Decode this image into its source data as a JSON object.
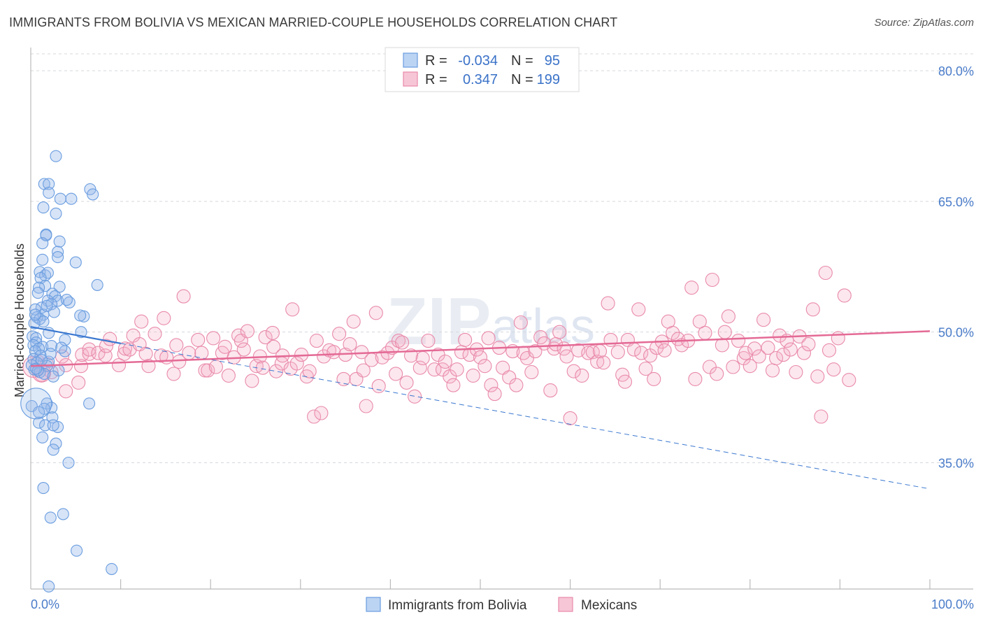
{
  "title": "IMMIGRANTS FROM BOLIVIA VS MEXICAN MARRIED-COUPLE HOUSEHOLDS CORRELATION CHART",
  "source": "Source: ZipAtlas.com",
  "watermark": {
    "zip": "ZIP",
    "atlas": "atlas"
  },
  "colors": {
    "blue": "#6a9de0",
    "blue_line": "#3b78d0",
    "pink": "#e98aaa",
    "pink_line": "#e46a95"
  },
  "chart_data": {
    "type": "scatter",
    "title": "IMMIGRANTS FROM BOLIVIA VS MEXICAN MARRIED-COUPLE HOUSEHOLDS CORRELATION CHART",
    "xlabel": "",
    "ylabel": "Married-couple Households",
    "xlim": [
      0,
      100
    ],
    "ylim": [
      20.5,
      82.5
    ],
    "x_tick_labels": [
      "0.0%",
      "100.0%"
    ],
    "y_ticks": [
      35,
      50,
      65,
      80
    ],
    "y_tick_labels": [
      "35.0%",
      "50.0%",
      "65.0%",
      "80.0%"
    ],
    "grid": true,
    "legend": {
      "placement": "top-center",
      "entries": [
        {
          "r_label": "R =",
          "r": "-0.034",
          "n_label": "N =",
          "n": "95"
        },
        {
          "r_label": "R =",
          "r": "0.347",
          "n_label": "N =",
          "n": "199"
        }
      ]
    },
    "series": [
      {
        "name": "Immigrants from Bolivia",
        "trend": {
          "solid": [
            [
              0,
              50.6
            ],
            [
              10,
              48.7
            ]
          ],
          "dashed": [
            [
              10,
              48.7
            ],
            [
              100,
              32.0
            ]
          ]
        },
        "points": [
          [
            2.8,
            70.2
          ],
          [
            1.5,
            67.0
          ],
          [
            2.0,
            67.0
          ],
          [
            6.6,
            66.4
          ],
          [
            6.9,
            65.8
          ],
          [
            4.5,
            65.3
          ],
          [
            3.3,
            65.3
          ],
          [
            2.0,
            66.0
          ],
          [
            1.4,
            64.3
          ],
          [
            2.8,
            63.6
          ],
          [
            1.7,
            61.2
          ],
          [
            1.7,
            61.1
          ],
          [
            1.3,
            60.2
          ],
          [
            3.2,
            60.4
          ],
          [
            3.0,
            59.2
          ],
          [
            3.0,
            58.6
          ],
          [
            1.3,
            58.3
          ],
          [
            5.0,
            58.0
          ],
          [
            1.0,
            56.9
          ],
          [
            1.6,
            56.5
          ],
          [
            1.9,
            56.8
          ],
          [
            1.1,
            56.2
          ],
          [
            1.6,
            55.3
          ],
          [
            0.9,
            55.1
          ],
          [
            3.2,
            55.2
          ],
          [
            7.4,
            55.4
          ],
          [
            0.8,
            54.5
          ],
          [
            2.4,
            54.4
          ],
          [
            2.7,
            54.1
          ],
          [
            3.0,
            53.6
          ],
          [
            1.9,
            53.6
          ],
          [
            2.3,
            53.2
          ],
          [
            4.3,
            53.4
          ],
          [
            1.2,
            52.8
          ],
          [
            0.5,
            52.6
          ],
          [
            2.6,
            52.3
          ],
          [
            1.4,
            52.0
          ],
          [
            0.7,
            51.7
          ],
          [
            5.9,
            51.8
          ],
          [
            5.5,
            51.9
          ],
          [
            1.0,
            51.5
          ],
          [
            1.4,
            51.2
          ],
          [
            0.4,
            51.0
          ],
          [
            2.0,
            49.9
          ],
          [
            0.2,
            49.5
          ],
          [
            0.6,
            49.3
          ],
          [
            3.8,
            49.1
          ],
          [
            5.6,
            50.0
          ],
          [
            0.6,
            48.8
          ],
          [
            0.3,
            48.5
          ],
          [
            1.3,
            48.3
          ],
          [
            2.3,
            48.4
          ],
          [
            0.9,
            48.1
          ],
          [
            0.5,
            47.8
          ],
          [
            3.8,
            47.8
          ],
          [
            1.1,
            47.3
          ],
          [
            0.3,
            46.9
          ],
          [
            0.7,
            46.5
          ],
          [
            2.0,
            46.6
          ],
          [
            0.1,
            46.2
          ],
          [
            1.8,
            46.1
          ],
          [
            0.4,
            45.7
          ],
          [
            1.0,
            45.4
          ],
          [
            3.1,
            45.6
          ],
          [
            1.5,
            45.2
          ],
          [
            0.8,
            45.6
          ],
          [
            2.5,
            44.9
          ],
          [
            0.1,
            41.5
          ],
          [
            1.8,
            41.8
          ],
          [
            2.3,
            41.3
          ],
          [
            6.5,
            41.8
          ],
          [
            1.5,
            41.2
          ],
          [
            0.9,
            40.8
          ],
          [
            2.4,
            40.2
          ],
          [
            0.9,
            39.6
          ],
          [
            1.6,
            39.3
          ],
          [
            3.0,
            39.1
          ],
          [
            2.5,
            39.3
          ],
          [
            1.3,
            37.9
          ],
          [
            2.8,
            37.2
          ],
          [
            2.5,
            36.5
          ],
          [
            4.2,
            35.0
          ],
          [
            1.4,
            32.1
          ],
          [
            3.6,
            29.1
          ],
          [
            2.2,
            28.7
          ],
          [
            5.1,
            24.9
          ],
          [
            9.0,
            22.8
          ],
          [
            2.0,
            20.8
          ],
          [
            0.6,
            45.8
          ],
          [
            1.2,
            46.8
          ],
          [
            2.2,
            47.5
          ],
          [
            0.5,
            52.0
          ],
          [
            4.0,
            53.7
          ],
          [
            3.4,
            48.2
          ],
          [
            1.8,
            53.0
          ]
        ]
      },
      {
        "name": "Mexicans",
        "trend": {
          "solid": [
            [
              0,
              46.1
            ],
            [
              100,
              50.1
            ]
          ]
        },
        "points": [
          [
            0.8,
            46.6
          ],
          [
            1.2,
            45.1
          ],
          [
            1.8,
            46.3
          ],
          [
            2.3,
            45.4
          ],
          [
            3.5,
            47.2
          ],
          [
            3.9,
            46.2
          ],
          [
            3.9,
            43.2
          ],
          [
            5.3,
            44.2
          ],
          [
            5.6,
            46.1
          ],
          [
            5.7,
            47.4
          ],
          [
            6.5,
            47.5
          ],
          [
            6.5,
            48.0
          ],
          [
            7.5,
            47.6
          ],
          [
            8.3,
            47.3
          ],
          [
            8.4,
            48.4
          ],
          [
            8.8,
            49.2
          ],
          [
            9.8,
            46.2
          ],
          [
            10.4,
            47.5
          ],
          [
            10.5,
            48.1
          ],
          [
            11.0,
            48.0
          ],
          [
            11.4,
            49.6
          ],
          [
            12.1,
            48.6
          ],
          [
            12.3,
            51.2
          ],
          [
            12.8,
            47.5
          ],
          [
            13.1,
            46.1
          ],
          [
            13.8,
            49.8
          ],
          [
            14.5,
            47.3
          ],
          [
            14.8,
            51.6
          ],
          [
            15.1,
            47.1
          ],
          [
            15.9,
            45.2
          ],
          [
            16.2,
            48.5
          ],
          [
            16.5,
            46.6
          ],
          [
            17.0,
            54.1
          ],
          [
            17.6,
            47.6
          ],
          [
            18.6,
            49.1
          ],
          [
            19.0,
            47.6
          ],
          [
            19.4,
            45.6
          ],
          [
            19.7,
            45.6
          ],
          [
            20.3,
            49.3
          ],
          [
            20.6,
            46.0
          ],
          [
            21.3,
            47.6
          ],
          [
            21.6,
            48.3
          ],
          [
            22.0,
            45.0
          ],
          [
            22.6,
            47.1
          ],
          [
            23.1,
            49.6
          ],
          [
            23.4,
            49.0
          ],
          [
            23.7,
            48.0
          ],
          [
            24.1,
            50.1
          ],
          [
            24.6,
            44.4
          ],
          [
            25.1,
            46.1
          ],
          [
            25.5,
            47.2
          ],
          [
            25.8,
            45.9
          ],
          [
            26.1,
            49.4
          ],
          [
            26.9,
            49.9
          ],
          [
            27.0,
            48.3
          ],
          [
            27.3,
            45.5
          ],
          [
            27.9,
            46.4
          ],
          [
            28.0,
            47.3
          ],
          [
            28.9,
            45.8
          ],
          [
            29.1,
            52.6
          ],
          [
            29.6,
            46.4
          ],
          [
            30.1,
            47.4
          ],
          [
            30.7,
            44.9
          ],
          [
            31.0,
            45.5
          ],
          [
            31.5,
            40.3
          ],
          [
            31.8,
            49.0
          ],
          [
            32.3,
            40.7
          ],
          [
            32.6,
            47.2
          ],
          [
            33.2,
            47.9
          ],
          [
            33.7,
            47.7
          ],
          [
            34.3,
            49.8
          ],
          [
            34.8,
            44.6
          ],
          [
            35.0,
            47.4
          ],
          [
            35.5,
            48.6
          ],
          [
            35.9,
            51.2
          ],
          [
            36.2,
            44.6
          ],
          [
            36.8,
            47.7
          ],
          [
            37.0,
            45.6
          ],
          [
            37.3,
            41.5
          ],
          [
            37.9,
            46.8
          ],
          [
            38.4,
            52.2
          ],
          [
            38.7,
            43.8
          ],
          [
            39.1,
            47.1
          ],
          [
            39.7,
            47.6
          ],
          [
            40.2,
            48.2
          ],
          [
            40.6,
            45.2
          ],
          [
            40.9,
            49.0
          ],
          [
            41.3,
            48.8
          ],
          [
            41.8,
            44.2
          ],
          [
            42.3,
            47.3
          ],
          [
            42.7,
            42.6
          ],
          [
            43.3,
            45.9
          ],
          [
            43.6,
            47.0
          ],
          [
            44.2,
            49.0
          ],
          [
            44.9,
            45.7
          ],
          [
            45.3,
            47.4
          ],
          [
            45.8,
            45.7
          ],
          [
            46.1,
            46.6
          ],
          [
            46.6,
            44.9
          ],
          [
            47.0,
            43.9
          ],
          [
            47.4,
            45.7
          ],
          [
            47.9,
            47.7
          ],
          [
            48.3,
            49.1
          ],
          [
            48.8,
            47.4
          ],
          [
            49.2,
            45.0
          ],
          [
            49.6,
            48.0
          ],
          [
            50.0,
            47.1
          ],
          [
            50.5,
            46.1
          ],
          [
            50.9,
            49.3
          ],
          [
            51.2,
            43.9
          ],
          [
            51.6,
            42.9
          ],
          [
            52.1,
            48.2
          ],
          [
            52.5,
            45.9
          ],
          [
            53.2,
            44.8
          ],
          [
            53.6,
            47.8
          ],
          [
            54.0,
            43.9
          ],
          [
            54.5,
            51.1
          ],
          [
            54.8,
            47.6
          ],
          [
            55.2,
            47.0
          ],
          [
            55.7,
            45.4
          ],
          [
            56.1,
            47.8
          ],
          [
            56.7,
            49.4
          ],
          [
            57.1,
            48.7
          ],
          [
            57.8,
            43.3
          ],
          [
            58.2,
            48.1
          ],
          [
            58.4,
            48.6
          ],
          [
            58.8,
            50.0
          ],
          [
            59.3,
            48.1
          ],
          [
            59.6,
            47.2
          ],
          [
            60.0,
            40.1
          ],
          [
            60.4,
            45.5
          ],
          [
            60.9,
            47.9
          ],
          [
            61.3,
            45.0
          ],
          [
            62.0,
            47.6
          ],
          [
            62.5,
            47.7
          ],
          [
            63.0,
            46.6
          ],
          [
            63.3,
            47.8
          ],
          [
            63.7,
            46.5
          ],
          [
            64.2,
            53.3
          ],
          [
            64.5,
            49.1
          ],
          [
            65.3,
            47.7
          ],
          [
            65.8,
            45.1
          ],
          [
            66.1,
            44.3
          ],
          [
            66.4,
            49.1
          ],
          [
            67.1,
            48.0
          ],
          [
            67.6,
            52.6
          ],
          [
            67.9,
            47.6
          ],
          [
            68.4,
            45.8
          ],
          [
            68.9,
            47.3
          ],
          [
            69.3,
            44.6
          ],
          [
            69.6,
            48.2
          ],
          [
            70.2,
            48.9
          ],
          [
            70.5,
            47.9
          ],
          [
            70.9,
            51.2
          ],
          [
            71.4,
            49.9
          ],
          [
            72.0,
            49.2
          ],
          [
            72.4,
            48.5
          ],
          [
            73.1,
            49.0
          ],
          [
            73.5,
            55.1
          ],
          [
            73.9,
            44.6
          ],
          [
            74.4,
            51.2
          ],
          [
            75.0,
            49.9
          ],
          [
            75.5,
            46.0
          ],
          [
            75.8,
            56.0
          ],
          [
            76.3,
            45.2
          ],
          [
            76.9,
            48.5
          ],
          [
            77.2,
            50.0
          ],
          [
            77.6,
            51.8
          ],
          [
            78.1,
            46.0
          ],
          [
            78.7,
            49.0
          ],
          [
            79.3,
            47.0
          ],
          [
            79.5,
            47.6
          ],
          [
            80.0,
            46.1
          ],
          [
            80.5,
            48.1
          ],
          [
            81.0,
            47.2
          ],
          [
            81.5,
            51.4
          ],
          [
            82.0,
            48.2
          ],
          [
            82.5,
            45.6
          ],
          [
            82.9,
            47.0
          ],
          [
            83.3,
            49.6
          ],
          [
            83.7,
            47.4
          ],
          [
            84.1,
            49.0
          ],
          [
            84.5,
            48.0
          ],
          [
            85.1,
            45.4
          ],
          [
            85.5,
            49.5
          ],
          [
            86.0,
            47.6
          ],
          [
            86.5,
            48.6
          ],
          [
            87.0,
            52.6
          ],
          [
            87.5,
            44.9
          ],
          [
            87.9,
            40.3
          ],
          [
            88.4,
            56.8
          ],
          [
            88.8,
            47.9
          ],
          [
            89.3,
            45.7
          ],
          [
            89.8,
            49.3
          ],
          [
            90.5,
            54.2
          ],
          [
            91.0,
            44.5
          ]
        ]
      }
    ]
  },
  "bottom_legend": {
    "blue_label": "Immigrants from Bolivia",
    "pink_label": "Mexicans"
  }
}
